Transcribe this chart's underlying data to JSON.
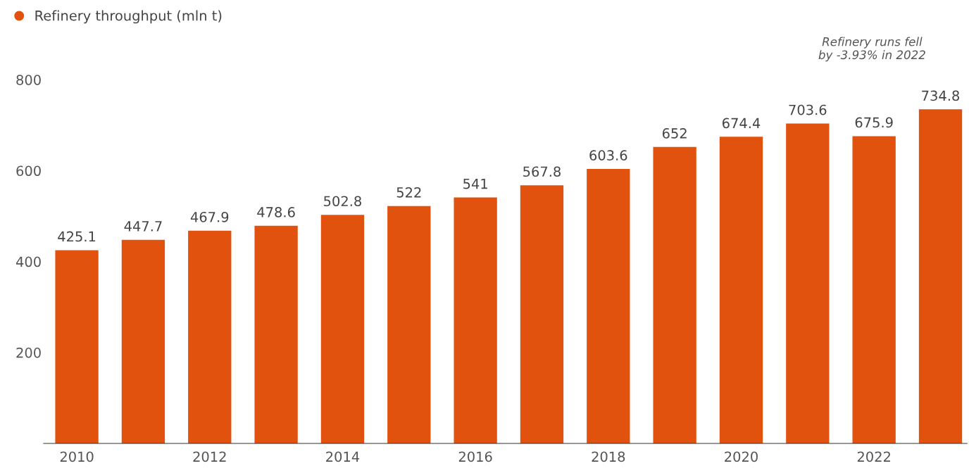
{
  "chart_data": {
    "type": "bar",
    "categories": [
      "2010",
      null,
      "2012",
      null,
      "2014",
      null,
      "2016",
      null,
      "2018",
      null,
      "2020",
      null,
      "2022",
      null
    ],
    "series": [
      {
        "name": "Refinery throughput (mln t)",
        "color": "#e2520f",
        "values": [
          425.1,
          447.7,
          467.9,
          478.6,
          502.8,
          522,
          541,
          567.8,
          603.6,
          652,
          674.4,
          703.6,
          675.9,
          734.8
        ]
      }
    ],
    "ylim": [
      0,
      800
    ],
    "yticks": [
      200,
      400,
      600,
      800
    ],
    "data_labels": true,
    "grid": false,
    "legend": "top left",
    "annotations": [
      "Refinery runs fell\nby -3.93% in 2022"
    ]
  }
}
